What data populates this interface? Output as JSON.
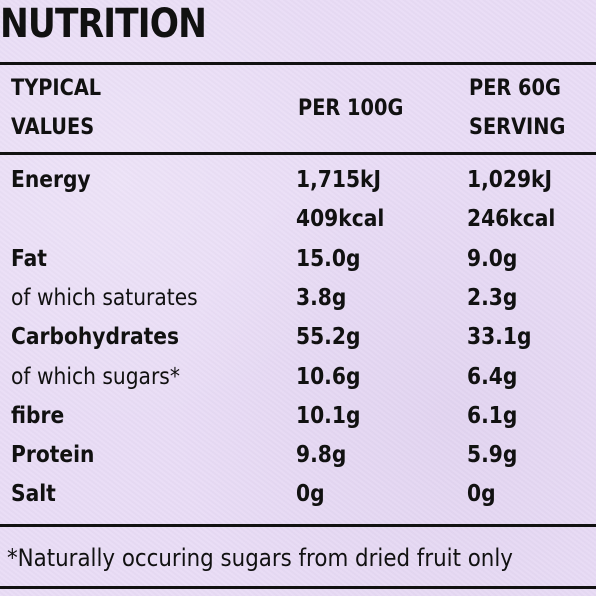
{
  "title": "NUTRITION",
  "header": {
    "col1_line1": "TYPICAL",
    "col1_line2": "VALUES",
    "col2": "PER 100G",
    "col3_line1": "PER 60G",
    "col3_line2": "SERVING"
  },
  "rows": [
    {
      "name": "Energy",
      "per100": "1,715kJ",
      "per60": "1,029kJ"
    },
    {
      "name": "",
      "per100": "409kcal",
      "per60": "246kcal"
    },
    {
      "name": "Fat",
      "per100": "15.0g",
      "per60": "9.0g"
    },
    {
      "name": "of which saturates",
      "per100": "3.8g",
      "per60": "2.3g"
    },
    {
      "name": "Carbohydrates",
      "per100": "55.2g",
      "per60": "33.1g"
    },
    {
      "name": "of which sugars*",
      "per100": "10.6g",
      "per60": "6.4g"
    },
    {
      "name": "fibre",
      "per100": "10.1g",
      "per60": "6.1g"
    },
    {
      "name": "Protein",
      "per100": "9.8g",
      "per60": "5.9g"
    },
    {
      "name": "Salt",
      "per100": "0g",
      "per60": "0g"
    }
  ],
  "footnote": "*Naturally occuring sugars from dried fruit only",
  "colors": {
    "background": "#e9dcf6",
    "text": "#111111",
    "rule": "#111111"
  }
}
